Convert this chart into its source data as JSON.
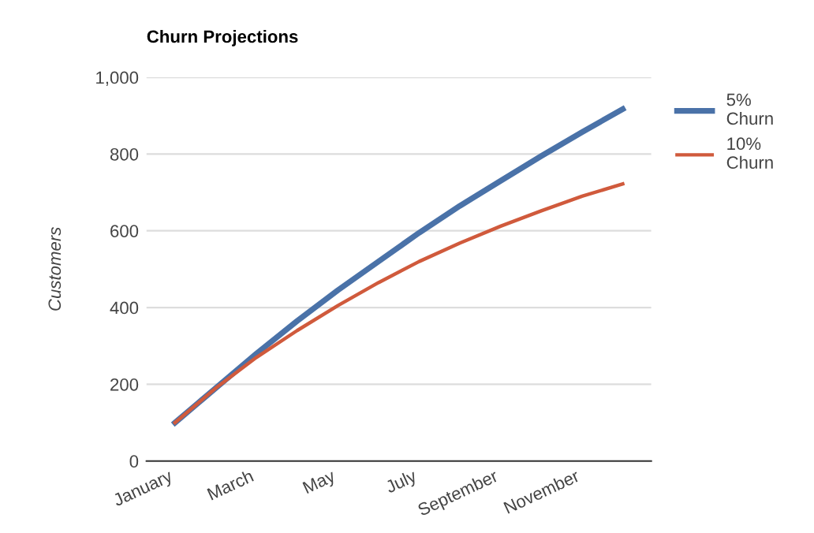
{
  "chart_data": {
    "type": "line",
    "title": "Churn Projections",
    "ylabel": "Customers",
    "categories": [
      "January",
      null,
      "March",
      null,
      "May",
      null,
      "July",
      null,
      "September",
      null,
      "November",
      null
    ],
    "series": [
      {
        "name": "5%\nChurn",
        "color": "#4a72a8",
        "values": [
          100,
          190,
          280,
          365,
          445,
          520,
          595,
          665,
          730,
          795,
          857,
          917
        ]
      },
      {
        "name": "10%\nChurn",
        "color": "#d05a3c",
        "values": [
          100,
          190,
          270,
          340,
          405,
          465,
          520,
          568,
          612,
          652,
          690,
          722
        ]
      }
    ],
    "ylim": [
      0,
      1000
    ],
    "yticks": [
      0,
      200,
      400,
      600,
      800,
      {
        "value": 1000,
        "label": "1,000"
      }
    ],
    "grid": "y",
    "legend": "right",
    "marker": "none",
    "line_style": "solid"
  }
}
